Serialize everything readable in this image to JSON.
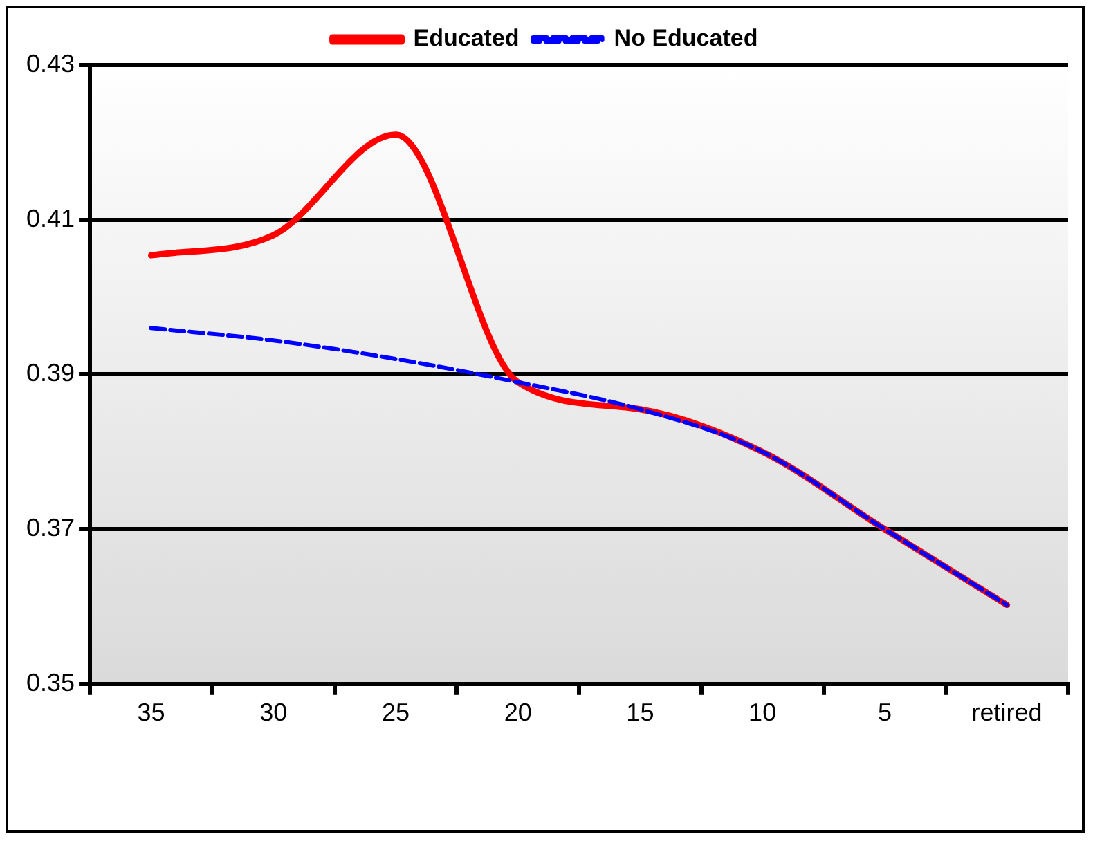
{
  "chart_data": {
    "type": "line",
    "categories": [
      "35",
      "30",
      "25",
      "20",
      "15",
      "10",
      "5",
      "retired"
    ],
    "series": [
      {
        "name": "Educated",
        "color": "#ff0000",
        "line_style": "solid",
        "values": [
          0.4054,
          0.408,
          0.421,
          0.389,
          0.3855,
          0.38,
          0.37,
          0.3602
        ]
      },
      {
        "name": "No Educated",
        "color": "#0000ff",
        "line_style": "dashed",
        "values": [
          0.396,
          0.3944,
          0.392,
          0.389,
          0.3855,
          0.38,
          0.37,
          0.3602
        ]
      }
    ],
    "ylim": [
      0.35,
      0.43
    ],
    "yticks": [
      0.35,
      0.37,
      0.39,
      0.41,
      0.43
    ],
    "grid": "y",
    "legend": "top",
    "marker": "none"
  }
}
